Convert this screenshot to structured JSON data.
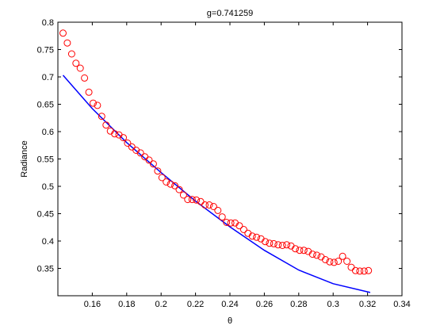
{
  "chart_data": {
    "type": "scatter",
    "title": "g=0.741259",
    "xlabel": "θ",
    "ylabel": "Radiance",
    "xlim": [
      0.14,
      0.34
    ],
    "ylim": [
      0.3,
      0.8
    ],
    "xticks": [
      0.16,
      0.18,
      0.2,
      0.22,
      0.24,
      0.26,
      0.28,
      0.3,
      0.32,
      0.34
    ],
    "xtick_labels": [
      "0.16",
      "0.18",
      "0.2",
      "0.22",
      "0.24",
      "0.26",
      "0.28",
      "0.3",
      "0.32",
      "0.34"
    ],
    "yticks": [
      0.35,
      0.4,
      0.45,
      0.5,
      0.55,
      0.6,
      0.65,
      0.7,
      0.75,
      0.8
    ],
    "ytick_labels": [
      "0.35",
      "0.4",
      "0.45",
      "0.5",
      "0.55",
      "0.6",
      "0.65",
      "0.7",
      "0.75",
      "0.8"
    ],
    "grid": false,
    "legend": "none",
    "series": [
      {
        "kind": "markers",
        "marker": "circle",
        "color": "#ff0000",
        "x": [
          0.143,
          0.1455,
          0.148,
          0.1505,
          0.153,
          0.1555,
          0.158,
          0.1605,
          0.163,
          0.1655,
          0.168,
          0.1705,
          0.173,
          0.1755,
          0.178,
          0.1805,
          0.183,
          0.1855,
          0.188,
          0.1905,
          0.193,
          0.1955,
          0.198,
          0.2005,
          0.203,
          0.2055,
          0.208,
          0.2105,
          0.213,
          0.2155,
          0.218,
          0.2205,
          0.223,
          0.2255,
          0.228,
          0.2305,
          0.233,
          0.2355,
          0.238,
          0.2405,
          0.243,
          0.2455,
          0.248,
          0.2505,
          0.253,
          0.2555,
          0.258,
          0.2605,
          0.263,
          0.2655,
          0.268,
          0.2705,
          0.273,
          0.2755,
          0.278,
          0.2805,
          0.283,
          0.2855,
          0.288,
          0.2905,
          0.293,
          0.2955,
          0.298,
          0.3005,
          0.303,
          0.3055,
          0.308,
          0.3105,
          0.313,
          0.3155,
          0.318,
          0.3205
        ],
        "y": [
          0.78,
          0.762,
          0.742,
          0.725,
          0.716,
          0.698,
          0.672,
          0.652,
          0.648,
          0.628,
          0.612,
          0.601,
          0.596,
          0.594,
          0.589,
          0.579,
          0.572,
          0.566,
          0.561,
          0.554,
          0.548,
          0.541,
          0.528,
          0.516,
          0.508,
          0.504,
          0.501,
          0.494,
          0.484,
          0.476,
          0.476,
          0.475,
          0.472,
          0.466,
          0.466,
          0.463,
          0.456,
          0.444,
          0.434,
          0.433,
          0.433,
          0.428,
          0.421,
          0.414,
          0.409,
          0.407,
          0.404,
          0.399,
          0.396,
          0.395,
          0.393,
          0.392,
          0.393,
          0.391,
          0.386,
          0.383,
          0.383,
          0.381,
          0.376,
          0.374,
          0.371,
          0.366,
          0.362,
          0.361,
          0.363,
          0.372,
          0.363,
          0.352,
          0.346,
          0.345,
          0.345,
          0.346
        ]
      },
      {
        "kind": "line",
        "color": "#0000ff",
        "x": [
          0.143,
          0.16,
          0.18,
          0.2,
          0.22,
          0.24,
          0.26,
          0.28,
          0.3,
          0.3215
        ],
        "y": [
          0.703,
          0.642,
          0.58,
          0.525,
          0.473,
          0.426,
          0.383,
          0.347,
          0.322,
          0.306
        ]
      }
    ]
  }
}
